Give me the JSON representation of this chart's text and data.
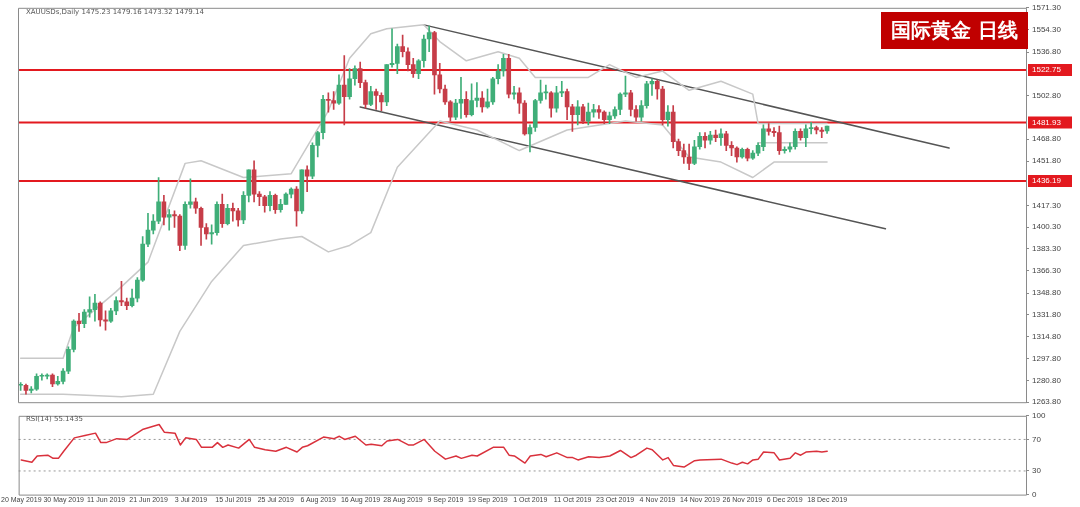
{
  "chart_data": [
    {
      "type": "candlestick",
      "title": "国际黄金 日线",
      "subtitle": "XAUUSDs,Daily 1475.23 1479.16 1473.32 1479.14",
      "tick_labels": "y",
      "ohlc": [
        [
          1277,
          1279,
          1273,
          1277
        ],
        [
          1277,
          1278,
          1270,
          1273
        ],
        [
          1273,
          1276,
          1271,
          1274
        ],
        [
          1274,
          1286,
          1273,
          1284
        ],
        [
          1284,
          1286,
          1281,
          1284
        ],
        [
          1284,
          1286,
          1282,
          1285
        ],
        [
          1285,
          1286,
          1276,
          1278
        ],
        [
          1278,
          1284,
          1277,
          1280
        ],
        [
          1280,
          1290,
          1278,
          1288
        ],
        [
          1288,
          1307,
          1286,
          1305
        ],
        [
          1305,
          1328,
          1303,
          1327
        ],
        [
          1327,
          1333,
          1319,
          1325
        ],
        [
          1325,
          1336,
          1322,
          1334
        ],
        [
          1334,
          1346,
          1330,
          1336
        ],
        [
          1336,
          1348,
          1327,
          1341
        ],
        [
          1341,
          1342,
          1323,
          1328
        ],
        [
          1328,
          1335,
          1320,
          1327
        ],
        [
          1327,
          1337,
          1326,
          1335
        ],
        [
          1335,
          1346,
          1332,
          1343
        ],
        [
          1343,
          1358,
          1339,
          1342
        ],
        [
          1342,
          1345,
          1336,
          1339
        ],
        [
          1339,
          1352,
          1338,
          1345
        ],
        [
          1345,
          1361,
          1342,
          1359
        ],
        [
          1359,
          1393,
          1358,
          1387
        ],
        [
          1387,
          1411,
          1385,
          1398
        ],
        [
          1398,
          1410,
          1395,
          1405
        ],
        [
          1405,
          1439,
          1403,
          1420
        ],
        [
          1420,
          1425,
          1402,
          1408
        ],
        [
          1408,
          1414,
          1398,
          1410
        ],
        [
          1410,
          1413,
          1400,
          1409
        ],
        [
          1409,
          1410,
          1382,
          1386
        ],
        [
          1386,
          1420,
          1383,
          1418
        ],
        [
          1418,
          1438,
          1415,
          1420
        ],
        [
          1420,
          1423,
          1411,
          1415
        ],
        [
          1415,
          1416,
          1386,
          1400
        ],
        [
          1400,
          1403,
          1391,
          1395
        ],
        [
          1395,
          1402,
          1387,
          1396
        ],
        [
          1396,
          1420,
          1394,
          1418
        ],
        [
          1418,
          1426,
          1400,
          1403
        ],
        [
          1403,
          1418,
          1402,
          1415
        ],
        [
          1415,
          1419,
          1405,
          1413
        ],
        [
          1413,
          1415,
          1401,
          1406
        ],
        [
          1406,
          1428,
          1403,
          1425
        ],
        [
          1425,
          1445,
          1420,
          1445
        ],
        [
          1445,
          1452,
          1420,
          1426
        ],
        [
          1426,
          1428,
          1417,
          1424
        ],
        [
          1424,
          1425,
          1412,
          1417
        ],
        [
          1417,
          1428,
          1413,
          1425
        ],
        [
          1425,
          1426,
          1411,
          1414
        ],
        [
          1414,
          1422,
          1412,
          1418
        ],
        [
          1418,
          1427,
          1418,
          1426
        ],
        [
          1426,
          1431,
          1423,
          1430
        ],
        [
          1430,
          1432,
          1401,
          1413
        ],
        [
          1413,
          1445,
          1411,
          1445
        ],
        [
          1445,
          1448,
          1428,
          1440
        ],
        [
          1440,
          1466,
          1438,
          1464
        ],
        [
          1464,
          1475,
          1455,
          1474
        ],
        [
          1474,
          1503,
          1469,
          1500
        ],
        [
          1500,
          1505,
          1490,
          1499
        ],
        [
          1499,
          1506,
          1492,
          1497
        ],
        [
          1497,
          1519,
          1496,
          1511
        ],
        [
          1511,
          1534,
          1480,
          1502
        ],
        [
          1502,
          1524,
          1500,
          1516
        ],
        [
          1516,
          1526,
          1511,
          1524
        ],
        [
          1524,
          1529,
          1509,
          1513
        ],
        [
          1513,
          1515,
          1493,
          1496
        ],
        [
          1496,
          1510,
          1495,
          1506
        ],
        [
          1506,
          1508,
          1492,
          1503
        ],
        [
          1503,
          1505,
          1491,
          1498
        ],
        [
          1498,
          1527,
          1495,
          1527
        ],
        [
          1527,
          1555,
          1525,
          1528
        ],
        [
          1528,
          1543,
          1520,
          1541
        ],
        [
          1541,
          1550,
          1533,
          1537
        ],
        [
          1537,
          1540,
          1522,
          1527
        ],
        [
          1527,
          1532,
          1517,
          1520
        ],
        [
          1520,
          1531,
          1516,
          1530
        ],
        [
          1530,
          1550,
          1525,
          1547
        ],
        [
          1547,
          1557,
          1537,
          1552
        ],
        [
          1552,
          1553,
          1504,
          1519
        ],
        [
          1519,
          1528,
          1505,
          1508
        ],
        [
          1508,
          1511,
          1496,
          1498
        ],
        [
          1498,
          1499,
          1483,
          1486
        ],
        [
          1486,
          1500,
          1484,
          1497
        ],
        [
          1497,
          1517,
          1485,
          1500
        ],
        [
          1500,
          1506,
          1486,
          1488
        ],
        [
          1488,
          1512,
          1487,
          1499
        ],
        [
          1499,
          1513,
          1494,
          1501
        ],
        [
          1501,
          1506,
          1490,
          1494
        ],
        [
          1494,
          1508,
          1493,
          1498
        ],
        [
          1498,
          1517,
          1496,
          1516
        ],
        [
          1516,
          1527,
          1512,
          1522
        ],
        [
          1522,
          1535,
          1518,
          1532
        ],
        [
          1532,
          1535,
          1501,
          1504
        ],
        [
          1504,
          1510,
          1500,
          1505
        ],
        [
          1505,
          1509,
          1489,
          1497
        ],
        [
          1497,
          1499,
          1472,
          1473
        ],
        [
          1473,
          1480,
          1459,
          1478
        ],
        [
          1478,
          1500,
          1475,
          1499
        ],
        [
          1499,
          1515,
          1497,
          1505
        ],
        [
          1505,
          1511,
          1500,
          1505
        ],
        [
          1505,
          1506,
          1486,
          1493
        ],
        [
          1493,
          1510,
          1490,
          1505
        ],
        [
          1505,
          1514,
          1502,
          1506
        ],
        [
          1506,
          1508,
          1484,
          1494
        ],
        [
          1494,
          1496,
          1475,
          1488
        ],
        [
          1488,
          1499,
          1480,
          1494
        ],
        [
          1494,
          1496,
          1481,
          1483
        ],
        [
          1483,
          1497,
          1480,
          1490
        ],
        [
          1490,
          1496,
          1486,
          1492
        ],
        [
          1492,
          1495,
          1485,
          1490
        ],
        [
          1490,
          1491,
          1481,
          1484
        ],
        [
          1484,
          1490,
          1481,
          1487
        ],
        [
          1487,
          1494,
          1485,
          1492
        ],
        [
          1492,
          1505,
          1488,
          1504
        ],
        [
          1504,
          1518,
          1502,
          1505
        ],
        [
          1505,
          1507,
          1487,
          1492
        ],
        [
          1492,
          1495,
          1483,
          1486
        ],
        [
          1486,
          1499,
          1483,
          1495
        ],
        [
          1495,
          1514,
          1493,
          1512
        ],
        [
          1512,
          1516,
          1503,
          1514
        ],
        [
          1514,
          1515,
          1500,
          1508
        ],
        [
          1508,
          1510,
          1480,
          1484
        ],
        [
          1484,
          1495,
          1479,
          1490
        ],
        [
          1490,
          1495,
          1462,
          1467
        ],
        [
          1467,
          1469,
          1456,
          1460
        ],
        [
          1460,
          1465,
          1450,
          1455
        ],
        [
          1455,
          1465,
          1445,
          1450
        ],
        [
          1450,
          1468,
          1449,
          1463
        ],
        [
          1463,
          1474,
          1461,
          1471
        ],
        [
          1471,
          1474,
          1462,
          1468
        ],
        [
          1468,
          1475,
          1465,
          1472
        ],
        [
          1472,
          1476,
          1467,
          1470
        ],
        [
          1470,
          1477,
          1464,
          1473
        ],
        [
          1473,
          1475,
          1460,
          1464
        ],
        [
          1464,
          1467,
          1456,
          1462
        ],
        [
          1462,
          1463,
          1451,
          1455
        ],
        [
          1455,
          1462,
          1454,
          1461
        ],
        [
          1461,
          1462,
          1452,
          1454
        ],
        [
          1454,
          1460,
          1453,
          1458
        ],
        [
          1458,
          1466,
          1456,
          1464
        ],
        [
          1463,
          1480,
          1460,
          1477
        ],
        [
          1477,
          1481,
          1472,
          1475
        ],
        [
          1475,
          1478,
          1471,
          1474
        ],
        [
          1474,
          1479,
          1457,
          1460
        ],
        [
          1460,
          1463,
          1458,
          1461
        ],
        [
          1461,
          1466,
          1459,
          1463
        ],
        [
          1463,
          1477,
          1461,
          1475
        ],
        [
          1475,
          1477,
          1468,
          1470
        ],
        [
          1470,
          1480,
          1463,
          1477
        ],
        [
          1477,
          1482,
          1473,
          1478
        ],
        [
          1478,
          1479,
          1473,
          1476
        ],
        [
          1476,
          1478,
          1470,
          1475
        ],
        [
          1475.23,
          1479.16,
          1473.32,
          1479.14
        ],
        null,
        null,
        null,
        null,
        null,
        null,
        null,
        null,
        null,
        null,
        null,
        null,
        null,
        null,
        null,
        null,
        null,
        null,
        null,
        null,
        null,
        null,
        null,
        null,
        null,
        null,
        null,
        null,
        null,
        null,
        null,
        null,
        null,
        null,
        null,
        null,
        null
      ],
      "series": [
        {
          "type": "line",
          "color": "#c8c8c8",
          "values": [
            1298,
            null,
            null,
            null,
            null,
            null,
            null,
            null,
            1298,
            null,
            1322,
            null,
            null,
            null,
            null,
            null,
            null,
            null,
            1350,
            null,
            null,
            null,
            null,
            null,
            1373,
            null,
            null,
            null,
            null,
            null,
            null,
            1450,
            null,
            null,
            1452,
            null,
            null,
            null,
            null,
            null,
            null,
            null,
            1439,
            null,
            null,
            null,
            null,
            null,
            null,
            null,
            null,
            1442,
            null,
            null,
            null,
            null,
            null,
            null,
            1491,
            null,
            null,
            null,
            1532,
            null,
            null,
            null,
            1551,
            null,
            null,
            1555,
            null,
            null,
            null,
            null,
            null,
            null,
            1558,
            null,
            null,
            1545,
            null,
            null,
            null,
            null,
            1530,
            null,
            null,
            null,
            null,
            null,
            1537,
            null,
            null,
            null,
            1532,
            null,
            null,
            1517,
            null,
            null,
            null,
            null,
            null,
            null,
            null,
            null,
            null,
            1517,
            null,
            null,
            null,
            1527,
            null,
            null,
            null,
            null,
            1517,
            null,
            null,
            null,
            null,
            1522,
            null,
            null,
            null,
            null,
            1507,
            null,
            null,
            null,
            null,
            null,
            1514,
            null,
            null,
            null,
            null,
            null,
            1504,
            1481,
            null,
            null,
            null,
            null,
            null,
            null,
            null,
            null,
            null,
            null,
            null,
            null,
            1481,
            null,
            null,
            null,
            null,
            null,
            null,
            null,
            null,
            null,
            null,
            null,
            null,
            null,
            null,
            null,
            null,
            null,
            null,
            null,
            null,
            null,
            null,
            null,
            null,
            null,
            null,
            null,
            null,
            null,
            null,
            null,
            null,
            null,
            null,
            null,
            null,
            null
          ]
        },
        {
          "type": "line",
          "color": "#c8c8c8",
          "values": [
            null,
            null,
            null,
            null,
            null,
            null,
            null,
            null,
            null,
            null,
            null,
            null,
            null,
            null,
            null,
            null,
            null,
            null,
            null,
            null,
            null,
            null,
            null,
            null,
            null,
            null,
            null,
            null,
            null,
            null,
            null,
            null,
            null,
            null,
            null,
            null,
            null,
            null,
            null,
            null,
            null,
            null,
            null,
            null,
            null,
            null,
            null,
            null,
            null,
            null,
            null,
            null,
            null,
            null,
            null,
            null,
            null,
            null,
            null,
            null,
            null,
            null,
            null,
            null,
            null,
            null,
            null,
            null,
            null,
            null,
            null,
            null,
            null,
            null,
            null,
            null,
            null,
            null,
            null,
            null,
            null,
            null,
            null,
            null,
            null,
            null,
            null,
            null,
            null,
            null,
            null,
            null,
            null,
            null,
            null,
            null,
            null,
            null,
            null,
            null,
            null,
            null,
            null,
            null,
            null,
            null,
            null,
            null,
            null,
            null,
            null,
            null,
            null,
            null,
            null,
            null,
            null,
            null,
            null,
            null,
            null,
            null,
            null,
            null,
            null,
            null,
            null,
            null,
            null,
            null,
            null,
            null,
            null,
            null,
            null,
            null,
            null,
            null,
            null,
            1466,
            null,
            null,
            null,
            null,
            null,
            null,
            null,
            null,
            null,
            null,
            null,
            null,
            1466,
            null,
            null,
            null,
            null,
            null,
            null,
            null,
            null,
            null,
            null,
            null,
            null,
            null,
            null,
            null,
            null,
            null,
            null,
            null,
            null,
            null,
            null,
            null,
            null,
            null,
            null,
            null,
            null,
            null,
            null,
            null,
            null,
            null,
            null,
            null,
            null,
            null
          ]
        },
        {
          "type": "line",
          "color": "#c8c8c8",
          "values": [
            1270,
            null,
            null,
            null,
            null,
            null,
            null,
            null,
            1270,
            null,
            null,
            null,
            null,
            null,
            null,
            null,
            null,
            null,
            null,
            1268,
            null,
            null,
            null,
            null,
            null,
            1270,
            null,
            null,
            null,
            null,
            1319,
            null,
            null,
            null,
            null,
            null,
            1358,
            null,
            null,
            null,
            null,
            null,
            1386,
            null,
            null,
            null,
            null,
            null,
            null,
            1391,
            null,
            null,
            null,
            1393,
            null,
            null,
            null,
            null,
            1381,
            null,
            null,
            null,
            1386,
            null,
            null,
            null,
            1396,
            null,
            null,
            null,
            null,
            1447,
            null,
            null,
            null,
            null,
            null,
            null,
            null,
            1483,
            null,
            null,
            null,
            null,
            null,
            null,
            1476,
            null,
            null,
            null,
            null,
            null,
            null,
            null,
            1460,
            null,
            null,
            null,
            null,
            null,
            null,
            null,
            null,
            1476,
            null,
            null,
            null,
            null,
            null,
            null,
            null,
            null,
            null,
            null,
            1483,
            null,
            null,
            null,
            null,
            null,
            null,
            1480,
            null,
            null,
            null,
            null,
            1455,
            null,
            null,
            null,
            null,
            null,
            1451,
            null,
            null,
            null,
            null,
            null,
            1439,
            null,
            null,
            null,
            1451,
            null,
            null,
            null,
            null,
            null,
            null,
            null,
            null,
            null,
            1451,
            null,
            null,
            null,
            null,
            null,
            null,
            null,
            null,
            null,
            null,
            null,
            null,
            null,
            null,
            null,
            null,
            null,
            null,
            null,
            null,
            null,
            null,
            null,
            null,
            null,
            null,
            null,
            null,
            null,
            null,
            null,
            null,
            null,
            null,
            null,
            null,
            null
          ]
        },
        {
          "type": "line",
          "color": "#555555",
          "values": [
            null,
            null,
            null,
            null,
            null,
            null,
            null,
            null,
            null,
            null,
            null,
            null,
            null,
            null,
            null,
            null,
            null,
            null,
            null,
            null,
            null,
            null,
            null,
            null,
            null,
            null,
            null,
            null,
            null,
            null,
            null,
            null,
            null,
            null,
            null,
            null,
            null,
            null,
            null,
            null,
            null,
            null,
            null,
            null,
            null,
            null,
            null,
            null,
            null,
            null,
            null,
            null,
            null,
            null,
            null,
            null,
            null,
            null,
            null,
            null,
            null,
            null,
            null,
            null,
            null,
            null,
            null,
            null,
            null,
            null,
            null,
            null,
            null,
            null,
            null,
            null,
            1558,
            null,
            null,
            null,
            null,
            null,
            null,
            null,
            null,
            null,
            null,
            null,
            null,
            null,
            null,
            null,
            null,
            null,
            null,
            null,
            null,
            null,
            null,
            null,
            null,
            null,
            null,
            null,
            null,
            null,
            null,
            null,
            null,
            null,
            null,
            null,
            null,
            null,
            null,
            null,
            null,
            null,
            null,
            null,
            null,
            null,
            null,
            null,
            null,
            null,
            null,
            null,
            null,
            null,
            null,
            null,
            null,
            null,
            null,
            null,
            null,
            null,
            null,
            null,
            null,
            null,
            null,
            null,
            null,
            null,
            null,
            null,
            null,
            null,
            null,
            null,
            null,
            null,
            null,
            null,
            null,
            null,
            null,
            null,
            null,
            null,
            null,
            null,
            null,
            null,
            null,
            null,
            null,
            null,
            null,
            null,
            null,
            null,
            null,
            1462,
            null,
            null,
            null,
            null,
            null,
            null,
            null,
            null,
            null,
            null,
            null,
            null,
            null,
            null
          ]
        },
        {
          "type": "line",
          "color": "#555555",
          "values": [
            null,
            null,
            null,
            null,
            null,
            null,
            null,
            null,
            null,
            null,
            null,
            null,
            null,
            null,
            null,
            null,
            null,
            null,
            null,
            null,
            null,
            null,
            null,
            null,
            null,
            null,
            null,
            null,
            null,
            null,
            null,
            null,
            null,
            null,
            null,
            null,
            null,
            null,
            null,
            null,
            null,
            null,
            null,
            null,
            null,
            null,
            null,
            null,
            null,
            null,
            null,
            null,
            null,
            null,
            null,
            null,
            null,
            null,
            null,
            null,
            null,
            null,
            null,
            null,
            1494,
            null,
            null,
            null,
            null,
            null,
            null,
            null,
            null,
            null,
            null,
            null,
            null,
            null,
            null,
            null,
            null,
            null,
            null,
            null,
            null,
            null,
            null,
            null,
            null,
            null,
            null,
            null,
            null,
            null,
            null,
            null,
            null,
            null,
            null,
            null,
            null,
            null,
            null,
            null,
            null,
            null,
            null,
            null,
            null,
            null,
            null,
            null,
            null,
            null,
            null,
            null,
            null,
            null,
            null,
            null,
            null,
            null,
            null,
            null,
            null,
            null,
            null,
            null,
            null,
            null,
            null,
            null,
            null,
            null,
            null,
            null,
            null,
            null,
            null,
            null,
            null,
            null,
            null,
            null,
            null,
            null,
            null,
            null,
            null,
            null,
            null,
            null,
            null,
            null,
            null,
            null,
            null,
            null,
            null,
            null,
            null,
            null,
            null,
            1399,
            null,
            null,
            null,
            null,
            null,
            null,
            null,
            null,
            null,
            null,
            null,
            null,
            null,
            null,
            null,
            null,
            null,
            null,
            null,
            null,
            null,
            null,
            null,
            null,
            null,
            null
          ]
        }
      ],
      "ylim": [
        1263.8,
        1571.3
      ],
      "yticks": [
        {
          "value": 1263.8,
          "label": "1263.80"
        },
        {
          "value": 1280.8,
          "label": "1280.80"
        },
        {
          "value": 1297.8,
          "label": "1297.80"
        },
        {
          "value": 1314.8,
          "label": "1314.80"
        },
        {
          "value": 1331.8,
          "label": "1331.80"
        },
        {
          "value": 1348.8,
          "label": "1348.80"
        },
        {
          "value": 1366.3,
          "label": "1366.30"
        },
        {
          "value": 1383.3,
          "label": "1383.30"
        },
        {
          "value": 1400.3,
          "label": "1400.30"
        },
        {
          "value": 1417.3,
          "label": "1417.30"
        },
        {
          "value": 1451.8,
          "label": "1451.80"
        },
        {
          "value": 1468.8,
          "label": "1468.80"
        },
        {
          "value": 1502.8,
          "label": "1502.80"
        },
        {
          "value": 1536.8,
          "label": "1536.80"
        },
        {
          "value": 1554.3,
          "label": "1554.30"
        },
        {
          "value": 1571.3,
          "label": "1571.30"
        }
      ],
      "ref_lines": [
        {
          "axis": "y",
          "value": 1522.75,
          "label": "1522.75",
          "color": "#e3191f"
        },
        {
          "axis": "y",
          "value": 1481.93,
          "label": "1481.93",
          "color": "#e3191f"
        },
        {
          "axis": "y",
          "value": 1436.19,
          "label": "1436.19",
          "color": "#e3191f"
        }
      ]
    },
    {
      "type": "line",
      "title": "RSI(14) 55.1435",
      "categories": [
        "20 May 2019",
        null,
        null,
        null,
        null,
        null,
        null,
        null,
        "30 May 2019",
        null,
        null,
        null,
        null,
        null,
        null,
        null,
        "11 Jun 2019",
        null,
        null,
        null,
        null,
        null,
        null,
        null,
        "21 Jun 2019",
        null,
        null,
        null,
        null,
        null,
        null,
        null,
        "3 Jul 2019",
        null,
        null,
        null,
        null,
        null,
        null,
        null,
        "15 Jul 2019",
        null,
        null,
        null,
        null,
        null,
        null,
        null,
        "25 Jul 2019",
        null,
        null,
        null,
        null,
        null,
        null,
        null,
        "6 Aug 2019",
        null,
        null,
        null,
        null,
        null,
        null,
        null,
        "16 Aug 2019",
        null,
        null,
        null,
        null,
        null,
        null,
        null,
        "28 Aug 2019",
        null,
        null,
        null,
        null,
        null,
        null,
        null,
        "9 Sep 2019",
        null,
        null,
        null,
        null,
        null,
        null,
        null,
        "19 Sep 2019",
        null,
        null,
        null,
        null,
        null,
        null,
        null,
        "1 Oct 2019",
        null,
        null,
        null,
        null,
        null,
        null,
        null,
        "11 Oct 2019",
        null,
        null,
        null,
        null,
        null,
        null,
        null,
        "23 Oct 2019",
        null,
        null,
        null,
        null,
        null,
        null,
        null,
        "4 Nov 2019",
        null,
        null,
        null,
        null,
        null,
        null,
        null,
        "14 Nov 2019",
        null,
        null,
        null,
        null,
        null,
        null,
        null,
        "26 Nov 2019",
        null,
        null,
        null,
        null,
        null,
        null,
        null,
        "6 Dec 2019",
        null,
        null,
        null,
        null,
        null,
        null,
        null,
        "18 Dec 2019",
        null,
        null,
        null,
        null,
        null,
        null,
        null,
        null,
        null,
        null,
        null,
        null,
        null,
        null,
        null,
        null,
        null,
        null,
        null,
        null,
        null,
        null,
        null,
        null,
        null,
        null,
        null,
        null,
        null,
        null,
        null,
        null,
        null,
        null,
        null,
        null,
        null
      ],
      "series": [
        {
          "color": "#d9313c",
          "values": [
            44,
            null,
            41,
            49,
            null,
            50,
            46,
            46,
            55,
            null,
            72,
            null,
            75,
            null,
            78,
            66,
            66,
            null,
            71,
            null,
            70,
            null,
            null,
            83,
            null,
            null,
            89,
            79,
            null,
            78,
            63,
            72,
            null,
            70,
            60,
            null,
            60,
            66,
            60,
            63,
            null,
            59,
            null,
            70,
            60,
            null,
            57,
            null,
            55,
            null,
            60,
            null,
            54,
            60,
            62,
            null,
            null,
            73,
            null,
            71,
            74,
            70,
            null,
            74,
            null,
            63,
            64,
            null,
            62,
            68,
            null,
            70,
            null,
            63,
            63,
            null,
            70,
            null,
            55,
            null,
            45,
            null,
            49,
            46,
            null,
            50,
            49,
            null,
            null,
            60,
            null,
            60,
            50,
            49,
            null,
            40,
            49,
            null,
            51,
            48,
            null,
            53,
            null,
            47,
            47,
            44,
            null,
            48,
            null,
            47,
            null,
            49,
            null,
            56,
            null,
            47,
            50,
            null,
            59,
            57,
            null,
            44,
            47,
            37,
            null,
            35,
            null,
            43,
            44,
            null,
            null,
            null,
            45,
            null,
            40,
            38,
            41,
            39,
            44,
            45,
            54,
            null,
            53,
            44,
            null,
            46,
            53,
            50,
            54,
            null,
            55,
            54,
            55,
            null,
            null,
            null,
            null,
            null,
            null,
            null,
            null,
            null,
            null,
            null,
            null,
            null,
            null,
            null,
            null,
            null,
            null,
            null,
            null,
            null,
            null,
            null,
            null,
            null,
            null,
            null,
            null,
            null,
            null,
            null,
            null,
            null,
            null,
            null,
            null,
            null
          ]
        }
      ],
      "ylim": [
        0,
        100
      ],
      "yticks": [
        0,
        30,
        70,
        100
      ],
      "ref_lines": [
        {
          "axis": "y",
          "value": 70,
          "color": "#999999",
          "line_style": "dotted"
        },
        {
          "axis": "y",
          "value": 30,
          "color": "#999999",
          "line_style": "dotted"
        }
      ]
    }
  ]
}
